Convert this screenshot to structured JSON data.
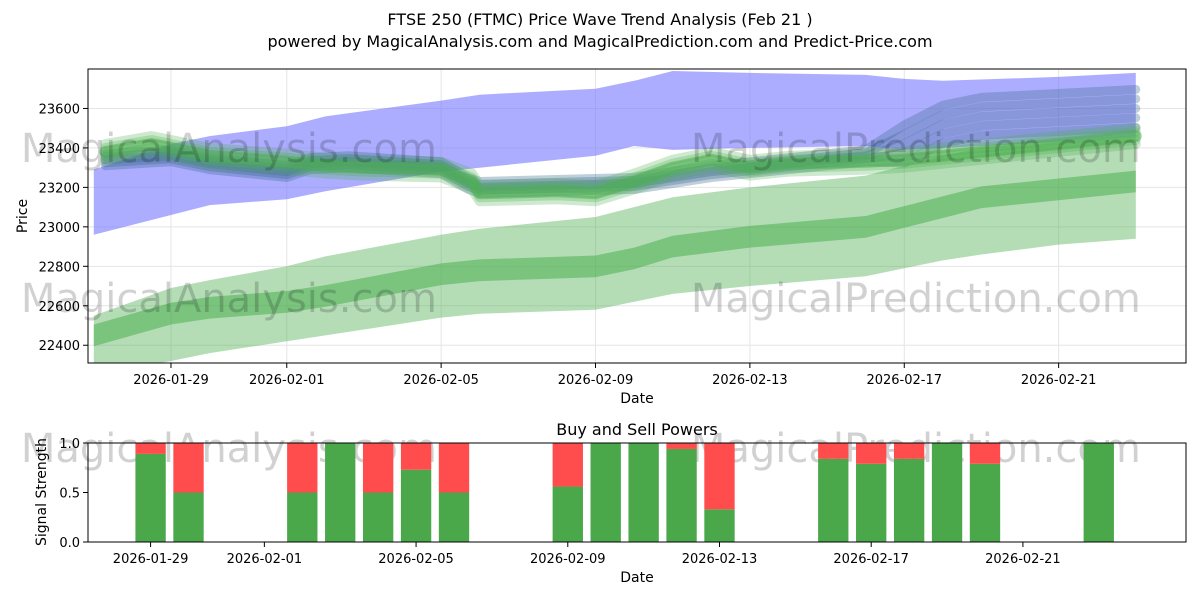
{
  "title_line1": "FTSE 250 (FTMC) Price Wave Trend Analysis (Feb 21 )",
  "title_line2": "powered by MagicalAnalysis.com and MagicalPrediction.com and Predict-Price.com",
  "watermarks": [
    "MagicalAnalysis.com",
    "MagicalPrediction.com"
  ],
  "colors": {
    "blue_band": "#7777ff",
    "blue_line": "#3a6b8f",
    "green_band": "#4caf50",
    "buy": "#4aa84a",
    "sell": "#ff4c4c"
  },
  "chart_data": [
    {
      "type": "area",
      "title": "",
      "xlabel": "Date",
      "ylabel": "Price",
      "x_range": [
        -2.15,
        26.3
      ],
      "ylim": [
        22310,
        23800
      ],
      "yticks": [
        22400,
        22600,
        22800,
        23000,
        23200,
        23400,
        23600
      ],
      "xtick_labels": [
        "2026-01-29",
        "2026-02-01",
        "2026-02-05",
        "2026-02-09",
        "2026-02-13",
        "2026-02-17",
        "2026-02-21"
      ],
      "xtick_positions": [
        0,
        3,
        7,
        11,
        15,
        19,
        23
      ],
      "grid": true,
      "series": [
        {
          "name": "blue wave band",
          "x": [
            -2,
            0,
            1,
            3,
            4,
            7,
            8,
            11,
            12,
            13,
            15,
            18,
            19,
            20,
            23,
            25
          ],
          "upper": [
            23290,
            23420,
            23460,
            23510,
            23560,
            23640,
            23670,
            23700,
            23740,
            23790,
            23780,
            23770,
            23750,
            23740,
            23760,
            23780
          ],
          "lower": [
            22960,
            23060,
            23110,
            23140,
            23180,
            23280,
            23300,
            23360,
            23410,
            23390,
            23400,
            23410,
            23390,
            23400,
            23430,
            23460
          ]
        },
        {
          "name": "blue wave lines",
          "x": [
            -1.7,
            0,
            1,
            3,
            3.6,
            4.6,
            7,
            7.7,
            8,
            12,
            14,
            18,
            19,
            20,
            21,
            25
          ],
          "center": [
            23340,
            23360,
            23320,
            23280,
            23320,
            23330,
            23300,
            23220,
            23200,
            23220,
            23280,
            23360,
            23420,
            23520,
            23560,
            23600
          ]
        },
        {
          "name": "green short-term wave",
          "x": [
            -1.7,
            -0.5,
            0,
            1,
            3,
            4,
            5,
            7,
            7.8,
            8,
            9,
            10,
            11,
            12,
            13,
            14,
            15,
            16,
            18,
            19,
            20,
            22,
            25
          ],
          "center": [
            23380,
            23420,
            23400,
            23360,
            23330,
            23310,
            23300,
            23290,
            23230,
            23170,
            23175,
            23180,
            23170,
            23230,
            23300,
            23340,
            23300,
            23320,
            23330,
            23340,
            23360,
            23400,
            23460
          ]
        },
        {
          "name": "green long-term wave",
          "x": [
            -2,
            0,
            1,
            3,
            4,
            7,
            8,
            11,
            12,
            13,
            15,
            18,
            19,
            20,
            21,
            23,
            25
          ],
          "center": [
            22450,
            22560,
            22590,
            22620,
            22650,
            22760,
            22780,
            22800,
            22840,
            22900,
            22950,
            23000,
            23050,
            23100,
            23150,
            23190,
            23230
          ],
          "outer_upper": [
            22550,
            22690,
            22730,
            22800,
            22850,
            22960,
            22990,
            23050,
            23100,
            23150,
            23200,
            23260,
            23310,
            23360,
            23400,
            23430,
            23460
          ],
          "outer_lower": [
            22250,
            22320,
            22360,
            22420,
            22450,
            22540,
            22560,
            22580,
            22620,
            22660,
            22700,
            22750,
            22790,
            22830,
            22860,
            22910,
            22940
          ]
        }
      ]
    },
    {
      "type": "bar",
      "title": "Buy and Sell Powers",
      "xlabel": "Date",
      "ylabel": "Signal Strength",
      "ylim": [
        0,
        1
      ],
      "yticks": [
        0.0,
        0.5,
        1.0
      ],
      "x_range": [
        -1.65,
        27.3
      ],
      "xtick_labels": [
        "2026-01-29",
        "2026-02-01",
        "2026-02-05",
        "2026-02-09",
        "2026-02-13",
        "2026-02-17",
        "2026-02-21"
      ],
      "xtick_positions": [
        0,
        3,
        7,
        11,
        15,
        19,
        23
      ],
      "series": [
        {
          "name": "Buy",
          "x": [
            0,
            1,
            4,
            5,
            6,
            7,
            8,
            11,
            12,
            13,
            14,
            15,
            18,
            19,
            20,
            21,
            22,
            25
          ],
          "values": [
            0.89,
            0.5,
            0.5,
            1.0,
            0.5,
            0.73,
            0.5,
            0.56,
            1.0,
            1.0,
            0.94,
            0.33,
            0.84,
            0.79,
            0.84,
            1.0,
            0.79,
            1.0
          ]
        },
        {
          "name": "Sell",
          "x": [
            0,
            1,
            4,
            5,
            6,
            7,
            8,
            11,
            12,
            13,
            14,
            15,
            18,
            19,
            20,
            21,
            22,
            25
          ],
          "values": [
            0.11,
            0.5,
            0.5,
            0.0,
            0.5,
            0.27,
            0.5,
            0.44,
            0.0,
            0.0,
            0.06,
            0.67,
            0.16,
            0.21,
            0.16,
            0.0,
            0.21,
            0.0
          ]
        }
      ]
    }
  ]
}
